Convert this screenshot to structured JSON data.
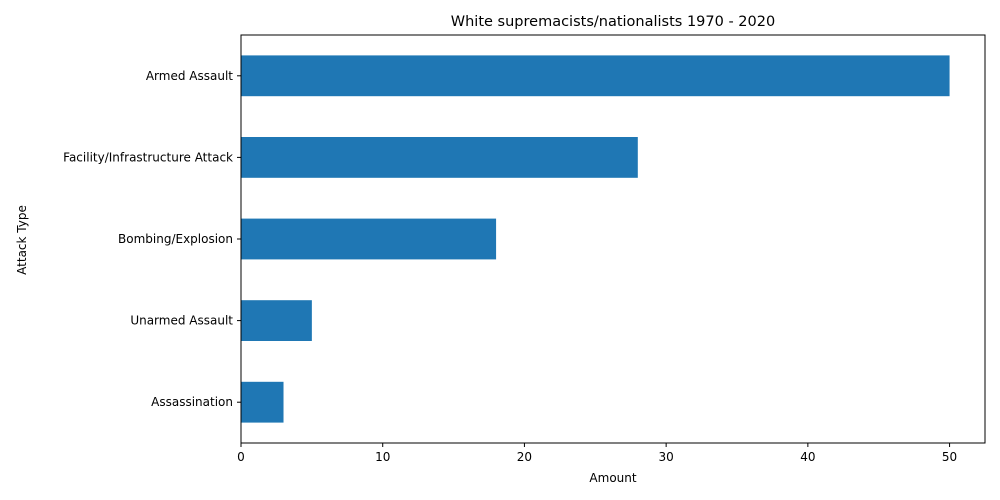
{
  "chart_data": {
    "type": "bar",
    "orientation": "horizontal",
    "title": "White supremacists/nationalists 1970 - 2020",
    "xlabel": "Amount",
    "ylabel": "Attack Type",
    "categories": [
      "Armed Assault",
      "Facility/Infrastructure Attack",
      "Bombing/Explosion",
      "Unarmed Assault",
      "Assassination"
    ],
    "values": [
      50,
      28,
      18,
      5,
      3
    ],
    "xlim": [
      0,
      52.5
    ],
    "xticks": [
      0,
      10,
      20,
      30,
      40,
      50
    ],
    "grid": false,
    "legend": "none",
    "bar_color": "#1f77b4"
  }
}
